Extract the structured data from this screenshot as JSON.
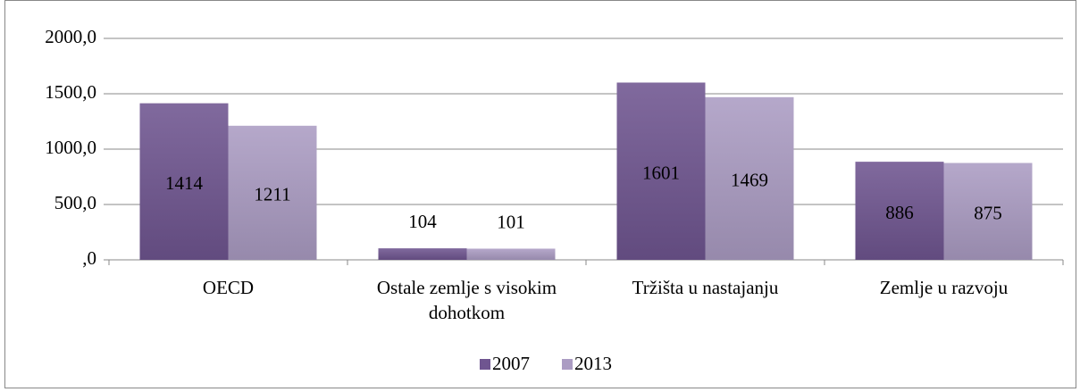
{
  "chart_data": {
    "type": "bar",
    "categories": [
      "OECD",
      "Ostale zemlje s visokim dohotkom",
      "Tržišta u nastajanju",
      "Zemlje u razvoju"
    ],
    "series": [
      {
        "name": "2007",
        "color": "#6f5590",
        "values": [
          1414,
          104,
          1601,
          886
        ]
      },
      {
        "name": "2013",
        "color": "#ab9cc3",
        "values": [
          1211,
          101,
          1469,
          875
        ]
      }
    ],
    "ylim": [
      0,
      2000
    ],
    "yticks": [
      {
        "value": 0,
        "label": ",0"
      },
      {
        "value": 500,
        "label": "500,0"
      },
      {
        "value": 1000,
        "label": "1000,0"
      },
      {
        "value": 1500,
        "label": "1500,0"
      },
      {
        "value": 2000,
        "label": "2000,0"
      }
    ],
    "grid": true,
    "legend": "bottom"
  }
}
